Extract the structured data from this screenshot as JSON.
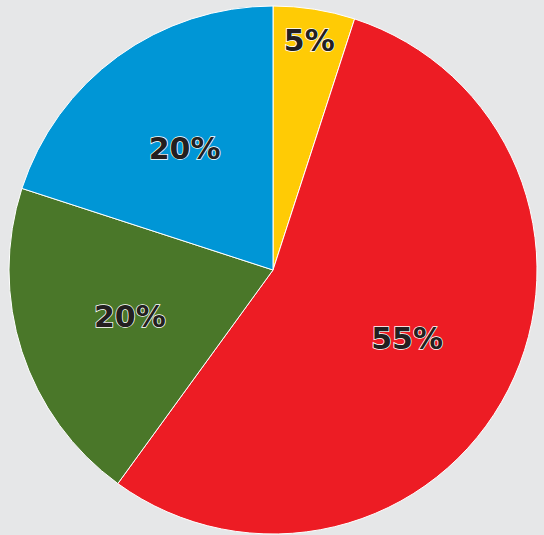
{
  "chart_data": {
    "type": "pie",
    "values": [
      5,
      55,
      20,
      20
    ],
    "value_labels": [
      "5%",
      "55%",
      "20%",
      "20%"
    ],
    "colors": [
      "#ffcb05",
      "#ed1c24",
      "#4a7729",
      "#0096d6"
    ],
    "data_labels": true
  }
}
